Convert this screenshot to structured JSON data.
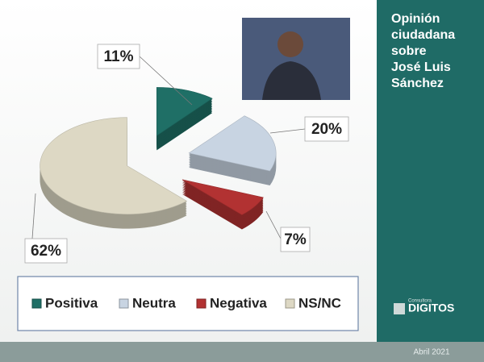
{
  "chart_data": {
    "type": "pie3d",
    "title": "Opinión ciudadana sobre José Luis Sánchez",
    "categories": [
      "Positiva",
      "Neutra",
      "Negativa",
      "NS/NC"
    ],
    "values": [
      11,
      20,
      7,
      62
    ],
    "value_labels": [
      "11%",
      "20%",
      "7%",
      "62%"
    ],
    "colors": [
      "#1f6f66",
      "#c8d4e2",
      "#b23232",
      "#ddd8c4"
    ],
    "legend": "bottom",
    "footer": "Abril 2021",
    "logo": {
      "top": "Consultora",
      "name": "DIGITOS"
    }
  }
}
